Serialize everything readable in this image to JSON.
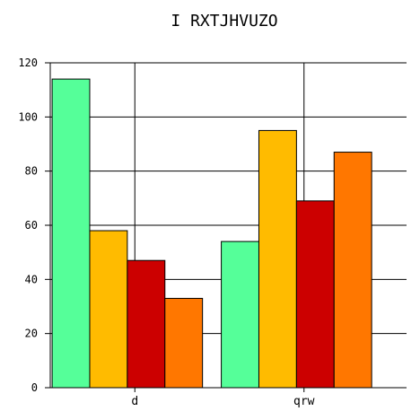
{
  "chart_data": {
    "type": "bar",
    "title": "I RXTJHVUZO",
    "xlabel": "",
    "ylabel": "",
    "categories": [
      "d",
      "qrw"
    ],
    "series": [
      {
        "values": [
          114,
          54
        ],
        "color": "#55ff99"
      },
      {
        "values": [
          58,
          95
        ],
        "color": "#ffbb00"
      },
      {
        "values": [
          47,
          69
        ],
        "color": "#cc0000"
      },
      {
        "values": [
          33,
          87
        ],
        "color": "#ff7700"
      }
    ],
    "ylim": [
      0,
      120
    ],
    "yticks": [
      "0",
      "20",
      "40",
      "60",
      "80",
      "100",
      "120"
    ],
    "grid": true,
    "legend": "none"
  }
}
